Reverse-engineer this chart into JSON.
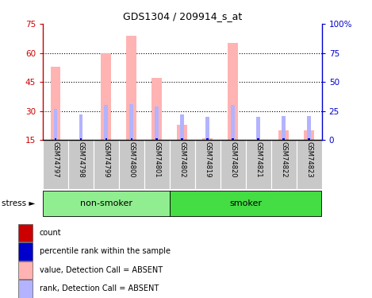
{
  "title": "GDS1304 / 209914_s_at",
  "samples": [
    "GSM74797",
    "GSM74798",
    "GSM74799",
    "GSM74800",
    "GSM74801",
    "GSM74802",
    "GSM74819",
    "GSM74820",
    "GSM74821",
    "GSM74822",
    "GSM74823"
  ],
  "non_smoker_count": 5,
  "smoker_count": 6,
  "value_absent": [
    53,
    0,
    60,
    69,
    47,
    23,
    16,
    65,
    15,
    20,
    20
  ],
  "rank_absent": [
    27,
    22,
    30,
    31,
    29,
    22,
    20,
    30,
    20,
    21,
    21
  ],
  "ylim_left": [
    15,
    75
  ],
  "ylim_right": [
    0,
    100
  ],
  "yticks_left": [
    15,
    30,
    45,
    60,
    75
  ],
  "yticks_right": [
    0,
    25,
    50,
    75,
    100
  ],
  "yticklabels_right": [
    "0",
    "25",
    "50",
    "75",
    "100%"
  ],
  "yticklabels_left": [
    "15",
    "30",
    "45",
    "60",
    "75"
  ],
  "color_value_absent": "#FFB3B3",
  "color_rank_absent": "#B3B3FF",
  "color_count_red": "#CC0000",
  "color_count_blue": "#0000CC",
  "color_group_nonsmoker": "#90EE90",
  "color_group_smoker": "#44DD44",
  "color_axis_left": "#CC0000",
  "color_axis_right": "#0000CC",
  "grid_dotted_at": [
    30,
    45,
    60
  ],
  "bg_xticklabels": "#C8C8C8",
  "legend_items": [
    "count",
    "percentile rank within the sample",
    "value, Detection Call = ABSENT",
    "rank, Detection Call = ABSENT"
  ],
  "legend_colors": [
    "#CC0000",
    "#0000CC",
    "#FFB3B3",
    "#B3B3FF"
  ]
}
